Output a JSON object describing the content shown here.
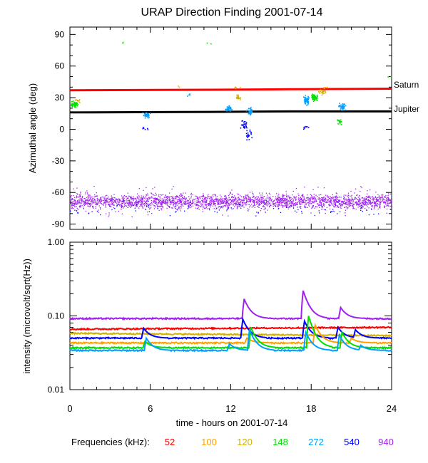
{
  "chart_data": [
    {
      "type": "scatter",
      "title": "URAP Direction Finding  2001-07-14",
      "xlabel": "time - hours on 2001-07-14",
      "ylabel": "Azimuthal angle (deg)",
      "xlim": [
        0,
        24
      ],
      "ylim": [
        -95,
        97
      ],
      "yticks": [
        90,
        60,
        30,
        0,
        -30,
        -60,
        -90
      ],
      "xticks": [
        0,
        6,
        12,
        18,
        24
      ],
      "reference_lines": [
        {
          "name": "Saturn",
          "color": "#ff0000",
          "points": [
            [
              0,
              37
            ],
            [
              10.5,
              37.5
            ],
            [
              16.5,
              38
            ],
            [
              24,
              38.5
            ]
          ]
        },
        {
          "name": "Jupiter",
          "color": "#000000",
          "points": [
            [
              0,
              16
            ],
            [
              10.5,
              16.5
            ],
            [
              16.5,
              17
            ],
            [
              24,
              17
            ]
          ]
        }
      ],
      "series": [
        {
          "name": "940",
          "color": "#a020f0",
          "description": "dense band",
          "band": {
            "x": [
              0,
              24
            ],
            "y_center": -68,
            "y_spread": 6
          }
        },
        {
          "name": "540",
          "color": "#0000ff",
          "clusters": [
            {
              "x": 5.6,
              "y": 1,
              "n": 3
            },
            {
              "x": 13.0,
              "y": 5,
              "n": 14,
              "spread": 8
            },
            {
              "x": 13.3,
              "y": -5,
              "n": 10,
              "spread": 6
            },
            {
              "x": 17.5,
              "y": 2,
              "n": 4
            }
          ]
        },
        {
          "name": "272",
          "color": "#00a0ff",
          "clusters": [
            {
              "x": 5.7,
              "y": 14,
              "n": 22,
              "spread": 4
            },
            {
              "x": 11.8,
              "y": 20,
              "n": 20,
              "spread": 4
            },
            {
              "x": 13.4,
              "y": 18,
              "n": 20,
              "spread": 6
            },
            {
              "x": 17.6,
              "y": 28,
              "n": 26,
              "spread": 6
            },
            {
              "x": 20.3,
              "y": 22,
              "n": 18,
              "spread": 6
            },
            {
              "x": 8.8,
              "y": 33,
              "n": 2
            }
          ]
        },
        {
          "name": "148",
          "color": "#00e000",
          "clusters": [
            {
              "x": 0.3,
              "y": 24,
              "n": 30,
              "spread": 4
            },
            {
              "x": 18.2,
              "y": 31,
              "n": 30,
              "spread": 5
            },
            {
              "x": 20.1,
              "y": 8,
              "n": 8,
              "spread": 4
            },
            {
              "x": 3.9,
              "y": 83,
              "n": 1
            },
            {
              "x": 10.4,
              "y": 82,
              "n": 1
            },
            {
              "x": 23.8,
              "y": 51,
              "n": 1
            }
          ]
        },
        {
          "name": "120",
          "color": "#d4b000",
          "clusters": [
            {
              "x": 12.5,
              "y": 31,
              "n": 10,
              "spread": 4
            },
            {
              "x": 18.8,
              "y": 36,
              "n": 12,
              "spread": 4
            },
            {
              "x": 0.5,
              "y": 28,
              "n": 6,
              "spread": 3
            }
          ]
        },
        {
          "name": "100",
          "color": "#ffa000",
          "clusters": [
            {
              "x": 12.4,
              "y": 40,
              "n": 3
            },
            {
              "x": 19.0,
              "y": 40,
              "n": 4
            },
            {
              "x": 8.2,
              "y": 41,
              "n": 1
            }
          ]
        }
      ]
    },
    {
      "type": "line",
      "xlabel": "time - hours on 2001-07-14",
      "ylabel": "intensity (microvolt/sqrt(Hz))",
      "yscale": "log",
      "ylim": [
        0.01,
        1.0
      ],
      "yticklabels": [
        "1.00",
        "0.10",
        "0.01"
      ],
      "xlim": [
        0,
        24
      ],
      "series": [
        {
          "name": "940",
          "color": "#a020f0",
          "baseline": 0.092,
          "bursts": [
            [
              13,
              0.17
            ],
            [
              17.4,
              0.22
            ],
            [
              20.2,
              0.13
            ]
          ]
        },
        {
          "name": "52",
          "color": "#ff0000",
          "baseline": 0.066,
          "end": 0.07
        },
        {
          "name": "120",
          "color": "#d4b000",
          "baseline": 0.058,
          "end": 0.054
        },
        {
          "name": "540",
          "color": "#0000ff",
          "baseline": 0.05,
          "bursts": [
            [
              5.5,
              0.068
            ],
            [
              12.9,
              0.09
            ],
            [
              17.5,
              0.085
            ],
            [
              20.0,
              0.07
            ],
            [
              21.3,
              0.065
            ]
          ]
        },
        {
          "name": "100",
          "color": "#ffa000",
          "baseline": 0.043,
          "bursts": [
            [
              13.2,
              0.05
            ],
            [
              18.3,
              0.075
            ],
            [
              21.0,
              0.05
            ]
          ]
        },
        {
          "name": "148",
          "color": "#00e000",
          "baseline": 0.037,
          "bursts": [
            [
              5.6,
              0.045
            ],
            [
              13.5,
              0.07
            ],
            [
              17.8,
              0.1
            ],
            [
              20.3,
              0.06
            ]
          ]
        },
        {
          "name": "272",
          "color": "#00a0ff",
          "baseline": 0.034,
          "bursts": [
            [
              5.7,
              0.05
            ],
            [
              11.9,
              0.042
            ],
            [
              13.4,
              0.065
            ],
            [
              17.6,
              0.06
            ],
            [
              20.1,
              0.055
            ],
            [
              21.7,
              0.04
            ]
          ]
        }
      ]
    }
  ],
  "legend": {
    "label": "Frequencies (kHz):",
    "items": [
      {
        "label": "52",
        "color": "#ff0000"
      },
      {
        "label": "100",
        "color": "#ffa000"
      },
      {
        "label": "120",
        "color": "#d4b000"
      },
      {
        "label": "148",
        "color": "#00e000"
      },
      {
        "label": "272",
        "color": "#00a0ff"
      },
      {
        "label": "540",
        "color": "#0000ff"
      },
      {
        "label": "940",
        "color": "#a020f0"
      }
    ]
  }
}
